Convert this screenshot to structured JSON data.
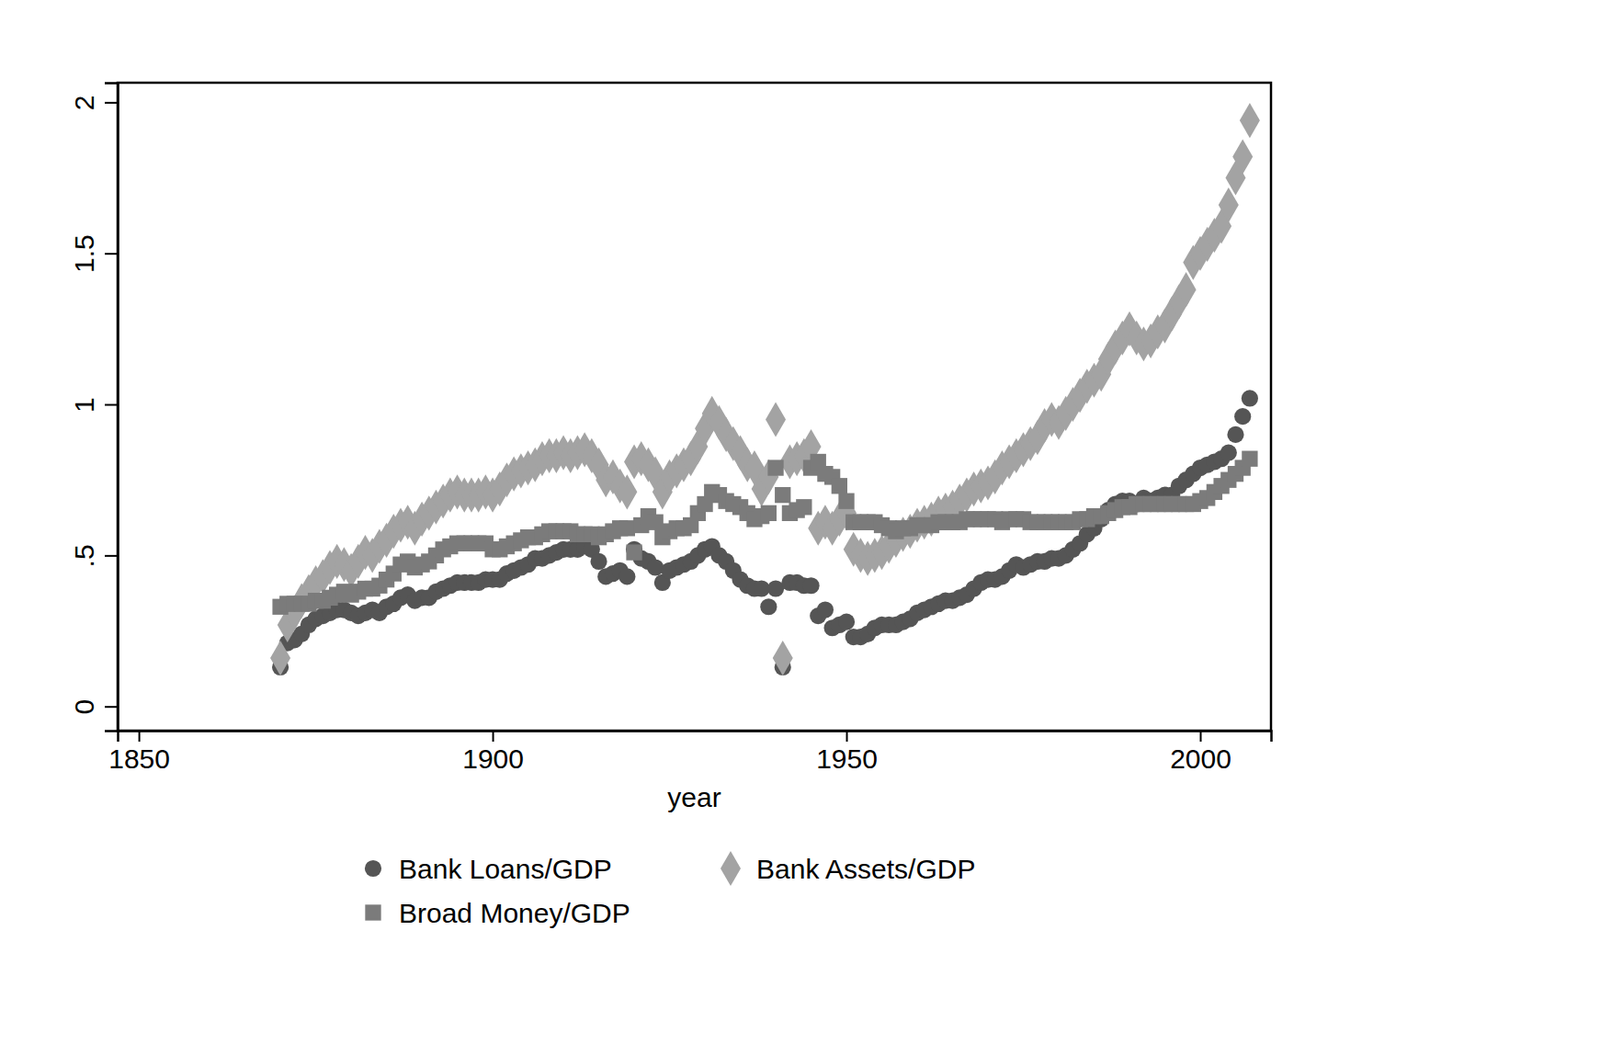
{
  "chart_data": {
    "type": "scatter",
    "x_label": "year",
    "xlim": [
      1847,
      2010
    ],
    "xticks": [
      1850,
      1900,
      1950,
      2000
    ],
    "ylim": [
      -0.08,
      2.065
    ],
    "yticks": [
      0,
      {
        "value": 0.5,
        "label": ".5"
      },
      1,
      1.5,
      2
    ],
    "grid": false,
    "legend": "bottom",
    "x": [
      1870,
      1871,
      1872,
      1873,
      1874,
      1875,
      1876,
      1877,
      1878,
      1879,
      1880,
      1881,
      1882,
      1883,
      1884,
      1885,
      1886,
      1887,
      1888,
      1889,
      1890,
      1891,
      1892,
      1893,
      1894,
      1895,
      1896,
      1897,
      1898,
      1899,
      1900,
      1901,
      1902,
      1903,
      1904,
      1905,
      1906,
      1907,
      1908,
      1909,
      1910,
      1911,
      1912,
      1913,
      1914,
      1915,
      1916,
      1917,
      1918,
      1919,
      1920,
      1921,
      1922,
      1923,
      1924,
      1925,
      1926,
      1927,
      1928,
      1929,
      1930,
      1931,
      1932,
      1933,
      1934,
      1935,
      1936,
      1937,
      1938,
      1939,
      1940,
      1941,
      1942,
      1943,
      1944,
      1945,
      1946,
      1947,
      1948,
      1949,
      1950,
      1951,
      1952,
      1953,
      1954,
      1955,
      1956,
      1957,
      1958,
      1959,
      1960,
      1961,
      1962,
      1963,
      1964,
      1965,
      1966,
      1967,
      1968,
      1969,
      1970,
      1971,
      1972,
      1973,
      1974,
      1975,
      1976,
      1977,
      1978,
      1979,
      1980,
      1981,
      1982,
      1983,
      1984,
      1985,
      1986,
      1987,
      1988,
      1989,
      1990,
      1991,
      1992,
      1993,
      1994,
      1995,
      1996,
      1997,
      1998,
      1999,
      2000,
      2001,
      2002,
      2003,
      2004,
      2005,
      2006,
      2007
    ],
    "series": [
      {
        "name": "Bank Loans/GDP",
        "color": "#555555",
        "marker": "circle",
        "values": [
          0.13,
          0.21,
          0.22,
          0.24,
          0.27,
          0.29,
          0.3,
          0.31,
          0.32,
          0.32,
          0.31,
          0.3,
          0.31,
          0.32,
          0.31,
          0.33,
          0.34,
          0.36,
          0.37,
          0.35,
          0.36,
          0.36,
          0.38,
          0.39,
          0.4,
          0.41,
          0.41,
          0.41,
          0.41,
          0.42,
          0.42,
          0.42,
          0.44,
          0.45,
          0.46,
          0.47,
          0.49,
          0.49,
          0.5,
          0.51,
          0.52,
          0.52,
          0.52,
          0.53,
          0.52,
          0.48,
          0.43,
          0.44,
          0.45,
          0.43,
          0.52,
          0.49,
          0.48,
          0.46,
          0.41,
          0.45,
          0.46,
          0.47,
          0.48,
          0.5,
          0.52,
          0.53,
          0.5,
          0.48,
          0.45,
          0.42,
          0.4,
          0.39,
          0.39,
          0.33,
          0.39,
          0.13,
          0.41,
          0.41,
          0.4,
          0.4,
          0.3,
          0.32,
          0.26,
          0.27,
          0.28,
          0.23,
          0.23,
          0.24,
          0.26,
          0.27,
          0.27,
          0.27,
          0.28,
          0.29,
          0.31,
          0.32,
          0.33,
          0.34,
          0.35,
          0.35,
          0.36,
          0.37,
          0.39,
          0.41,
          0.42,
          0.42,
          0.43,
          0.45,
          0.47,
          0.46,
          0.47,
          0.48,
          0.48,
          0.49,
          0.49,
          0.5,
          0.52,
          0.54,
          0.57,
          0.59,
          0.62,
          0.65,
          0.67,
          0.68,
          0.68,
          0.67,
          0.69,
          0.68,
          0.69,
          0.7,
          0.7,
          0.73,
          0.75,
          0.77,
          0.79,
          0.8,
          0.81,
          0.82,
          0.84,
          0.9,
          0.96,
          1.02
        ]
      },
      {
        "name": "Bank Assets/GDP",
        "color": "#a3a3a3",
        "marker": "diamond",
        "values": [
          0.16,
          0.27,
          0.31,
          0.35,
          0.38,
          0.41,
          0.43,
          0.46,
          0.48,
          0.47,
          0.45,
          0.48,
          0.51,
          0.5,
          0.53,
          0.55,
          0.58,
          0.6,
          0.61,
          0.59,
          0.62,
          0.64,
          0.66,
          0.68,
          0.7,
          0.71,
          0.7,
          0.7,
          0.7,
          0.71,
          0.7,
          0.72,
          0.75,
          0.77,
          0.78,
          0.79,
          0.8,
          0.82,
          0.83,
          0.83,
          0.84,
          0.83,
          0.84,
          0.85,
          0.83,
          0.8,
          0.75,
          0.76,
          0.73,
          0.71,
          0.81,
          0.82,
          0.8,
          0.77,
          0.71,
          0.76,
          0.78,
          0.8,
          0.82,
          0.86,
          0.92,
          0.97,
          0.94,
          0.9,
          0.87,
          0.84,
          0.8,
          0.79,
          0.72,
          0.76,
          0.95,
          0.16,
          0.81,
          0.82,
          0.83,
          0.86,
          0.59,
          0.61,
          0.59,
          0.62,
          0.64,
          0.52,
          0.5,
          0.49,
          0.5,
          0.51,
          0.53,
          0.55,
          0.57,
          0.58,
          0.6,
          0.61,
          0.62,
          0.64,
          0.65,
          0.66,
          0.68,
          0.7,
          0.72,
          0.73,
          0.74,
          0.76,
          0.79,
          0.81,
          0.83,
          0.85,
          0.87,
          0.89,
          0.93,
          0.95,
          0.94,
          0.97,
          1.0,
          1.03,
          1.06,
          1.08,
          1.1,
          1.15,
          1.19,
          1.22,
          1.25,
          1.22,
          1.2,
          1.21,
          1.24,
          1.26,
          1.3,
          1.34,
          1.38,
          1.47,
          1.5,
          1.53,
          1.56,
          1.59,
          1.66,
          1.75,
          1.82,
          1.94
        ]
      },
      {
        "name": "Broad Money/GDP",
        "color": "#7b7b7b",
        "marker": "square",
        "values": [
          0.33,
          0.34,
          0.34,
          0.34,
          0.34,
          0.35,
          0.35,
          0.36,
          0.37,
          0.38,
          0.37,
          0.38,
          0.39,
          0.39,
          0.4,
          0.42,
          0.44,
          0.47,
          0.48,
          0.46,
          0.47,
          0.48,
          0.5,
          0.52,
          0.53,
          0.54,
          0.54,
          0.54,
          0.54,
          0.54,
          0.52,
          0.52,
          0.53,
          0.54,
          0.55,
          0.56,
          0.56,
          0.57,
          0.58,
          0.58,
          0.58,
          0.58,
          0.57,
          0.57,
          0.57,
          0.56,
          0.57,
          0.58,
          0.59,
          0.59,
          0.51,
          0.6,
          0.63,
          0.61,
          0.56,
          0.58,
          0.59,
          0.59,
          0.6,
          0.64,
          0.67,
          0.71,
          0.7,
          0.68,
          0.67,
          0.66,
          0.64,
          0.62,
          0.63,
          0.64,
          0.79,
          0.7,
          0.64,
          0.65,
          0.66,
          0.79,
          0.81,
          0.77,
          0.76,
          0.73,
          0.68,
          0.61,
          0.61,
          0.61,
          0.61,
          0.6,
          0.59,
          0.58,
          0.59,
          0.59,
          0.6,
          0.6,
          0.6,
          0.61,
          0.61,
          0.61,
          0.61,
          0.62,
          0.62,
          0.62,
          0.62,
          0.62,
          0.61,
          0.62,
          0.62,
          0.62,
          0.61,
          0.61,
          0.61,
          0.61,
          0.61,
          0.61,
          0.61,
          0.62,
          0.62,
          0.63,
          0.63,
          0.64,
          0.65,
          0.66,
          0.66,
          0.67,
          0.67,
          0.67,
          0.67,
          0.67,
          0.67,
          0.67,
          0.67,
          0.67,
          0.68,
          0.69,
          0.71,
          0.73,
          0.75,
          0.77,
          0.79,
          0.82
        ]
      }
    ]
  }
}
